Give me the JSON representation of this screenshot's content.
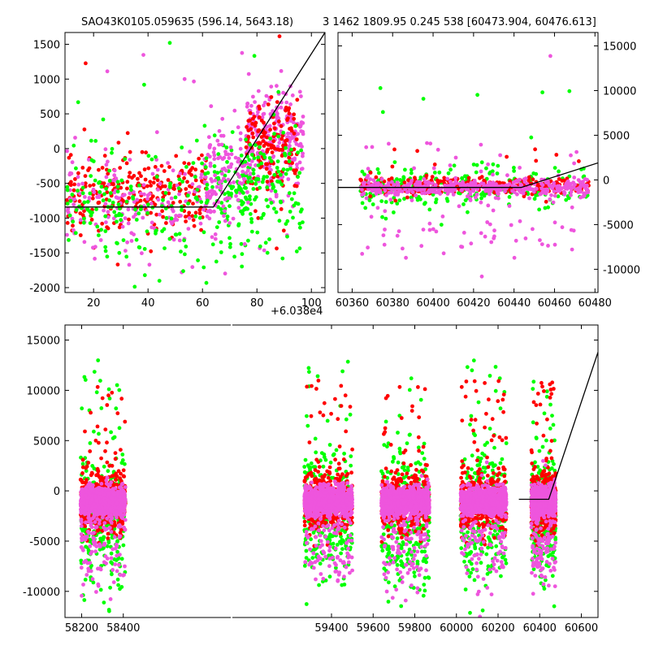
{
  "figure": {
    "title_left": "SAO43K0105.059635 (596.14, 5643.18)",
    "title_right": "3 1462 1809.95 0.245 538 [60473.904, 60476.613]"
  },
  "colors": {
    "green": "#00ff00",
    "red": "#ff0000",
    "magenta": "#ee55dd",
    "fit_line": "#000000"
  },
  "chart_data": [
    {
      "id": "top-left",
      "type": "scatter",
      "title": "",
      "xlabel": "",
      "ylabel": "",
      "x_offset_label": "+6.038e4",
      "xlim": [
        9.5,
        105
      ],
      "ylim": [
        -2070,
        1670
      ],
      "xticks": [
        20,
        40,
        60,
        80,
        100
      ],
      "yticks": [
        -2000,
        -1500,
        -1000,
        -500,
        0,
        500,
        1000,
        1500
      ],
      "ytick_side": "left",
      "grid": false,
      "fit_line": {
        "x": [
          9.5,
          64,
          105
        ],
        "y": [
          -840,
          -840,
          1670
        ]
      },
      "clusters": [
        {
          "x": [
            10,
            62
          ],
          "y_center": -620,
          "y_spread": 520,
          "color": "red",
          "count": 260
        },
        {
          "x": [
            10,
            65
          ],
          "y_center": -780,
          "y_spread": 680,
          "color": "magenta",
          "count": 200
        },
        {
          "x": [
            10,
            65
          ],
          "y_center": -850,
          "y_spread": 850,
          "color": "green",
          "count": 180
        },
        {
          "x": [
            65,
            78
          ],
          "y_center": -700,
          "y_spread": 650,
          "color": "green",
          "count": 90
        },
        {
          "x": [
            62,
            78
          ],
          "y_center": -350,
          "y_spread": 650,
          "color": "magenta",
          "count": 110
        },
        {
          "x": [
            76,
            97
          ],
          "y_center": 150,
          "y_spread": 700,
          "color": "magenta",
          "count": 260
        },
        {
          "x": [
            76,
            95
          ],
          "y_center": 0,
          "y_spread": 650,
          "color": "red",
          "count": 150
        },
        {
          "x": [
            74,
            97
          ],
          "y_center": -500,
          "y_spread": 850,
          "color": "green",
          "count": 120
        }
      ]
    },
    {
      "id": "top-right",
      "type": "scatter",
      "title": "",
      "xlabel": "",
      "ylabel": "",
      "xlim": [
        60353,
        60481.5
      ],
      "ylim": [
        -12600,
        16500
      ],
      "xticks": [
        60360,
        60380,
        60400,
        60420,
        60440,
        60460,
        60480
      ],
      "yticks": [
        -10000,
        -5000,
        0,
        5000,
        10000,
        15000
      ],
      "ytick_side": "right",
      "grid": false,
      "fit_line": {
        "x": [
          60353,
          60443.5,
          60481.5
        ],
        "y": [
          -840,
          -840,
          1900
        ]
      },
      "clusters": [
        {
          "x": [
            60364,
            60477
          ],
          "y_center": -900,
          "y_spread": 2200,
          "color": "green",
          "count": 260
        },
        {
          "x": [
            60364,
            60477
          ],
          "y_center": -700,
          "y_spread": 800,
          "color": "red",
          "count": 320
        },
        {
          "x": [
            60364,
            60477
          ],
          "y_center": -900,
          "y_spread": 900,
          "color": "magenta",
          "count": 420
        },
        {
          "x": [
            60364,
            60477
          ],
          "y_center": -5500,
          "y_spread": 3500,
          "color": "magenta",
          "count": 60
        }
      ]
    },
    {
      "id": "bottom",
      "type": "scatter",
      "title": "",
      "xlabel": "",
      "ylabel": "",
      "xlim": [
        58120,
        60680
      ],
      "ylim": [
        -12600,
        16500
      ],
      "xticks": [
        58200,
        58400,
        59400,
        59600,
        59800,
        60000,
        60200,
        60400,
        60600
      ],
      "yticks": [
        -10000,
        -5000,
        0,
        5000,
        10000,
        15000
      ],
      "ytick_side": "left",
      "grid": false,
      "fit_line": {
        "x": [
          60300,
          60443.5,
          60680
        ],
        "y": [
          -840,
          -840,
          13800
        ]
      },
      "groups": [
        {
          "x": [
            58195,
            58410
          ]
        },
        {
          "x": [
            59270,
            59500
          ]
        },
        {
          "x": [
            59640,
            59870
          ]
        },
        {
          "x": [
            60020,
            60240
          ]
        },
        {
          "x": [
            60360,
            60477
          ]
        }
      ]
    }
  ]
}
